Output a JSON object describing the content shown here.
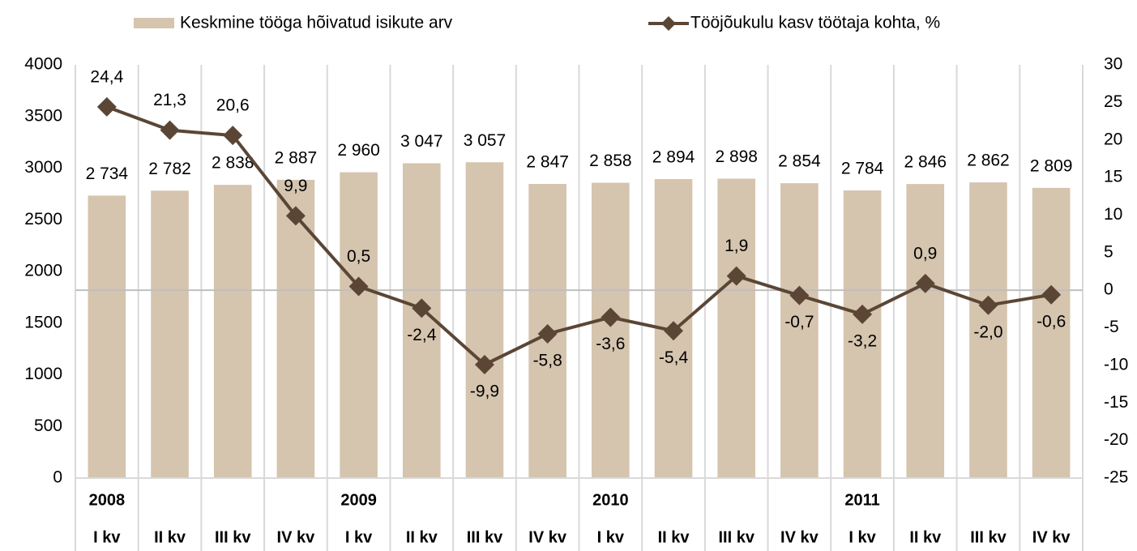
{
  "chart_data": {
    "type": "bar_line",
    "categories": [
      "I kv",
      "II kv",
      "III kv",
      "IV kv",
      "I kv",
      "II kv",
      "III kv",
      "IV kv",
      "I kv",
      "II kv",
      "III kv",
      "IV kv",
      "I kv",
      "II kv",
      "III kv",
      "IV kv"
    ],
    "category_groups": [
      "2008",
      null,
      null,
      null,
      "2009",
      null,
      null,
      null,
      "2010",
      null,
      null,
      null,
      "2011",
      null,
      null,
      null
    ],
    "series": [
      {
        "name": "Keskmine tööga hõivatud isikute arv",
        "type": "bar",
        "color": "#d5c4ae",
        "values": [
          2734,
          2782,
          2838,
          2887,
          2960,
          3047,
          3057,
          2847,
          2858,
          2894,
          2898,
          2854,
          2784,
          2846,
          2862,
          2809
        ],
        "value_labels": [
          "2 734",
          "2 782",
          "2 838",
          "2 887",
          "2 960",
          "3 047",
          "3 057",
          "2 847",
          "2 858",
          "2 894",
          "2 898",
          "2 854",
          "2 784",
          "2 846",
          "2 862",
          "2 809"
        ]
      },
      {
        "name": "Tööjõukulu kasv töötaja kohta, %",
        "type": "line",
        "axis": "y2",
        "color": "#5b4636",
        "values": [
          24.4,
          21.3,
          20.6,
          9.9,
          0.5,
          -2.4,
          -9.9,
          -5.8,
          -3.6,
          -5.4,
          1.9,
          -0.7,
          -3.2,
          0.9,
          -2.0,
          -0.6
        ],
        "value_labels": [
          "24,4",
          "21,3",
          "20,6",
          "9,9",
          "0,5",
          "-2,4",
          "-9,9",
          "-5,8",
          "-3,6",
          "-5,4",
          "1,9",
          "-0,7",
          "-3,2",
          "0,9",
          "-2,0",
          "-0,6"
        ],
        "negative_label_color": "#ff0000"
      }
    ],
    "ylim": [
      0,
      4000
    ],
    "yticks": [
      0,
      500,
      1000,
      1500,
      2000,
      2500,
      3000,
      3500,
      4000
    ],
    "y2lim": [
      -25,
      30
    ],
    "y2ticks": [
      -25,
      -20,
      -15,
      -10,
      -5,
      0,
      5,
      10,
      15,
      20,
      25,
      30
    ],
    "legend": "top"
  }
}
